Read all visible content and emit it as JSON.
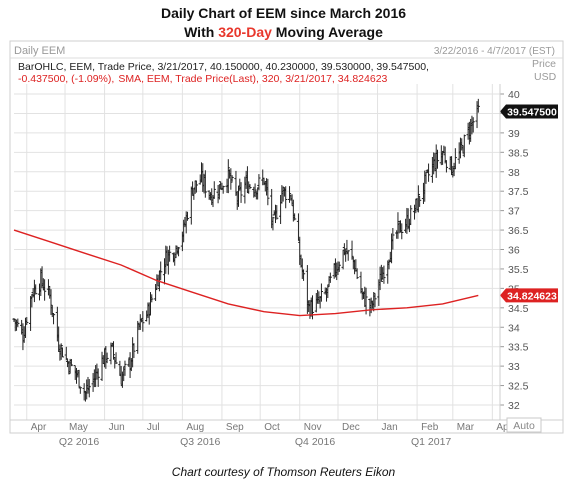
{
  "header": {
    "title_line1": "Daily Chart of EEM since March 2016",
    "title_line2_pre": "With ",
    "title_line2_highlight": "320-Day",
    "title_line2_post": " Moving Average"
  },
  "panel": {
    "name": "Daily EEM",
    "date_range": "3/22/2016 - 4/7/2017 (EST)",
    "info_line1": "BarOHLC, EEM, Trade Price, 3/21/2017, 40.150000, 40.230000, 39.530000, 39.547500,",
    "info_line2_change": "-0.437500, (-1.09%),",
    "info_line2_sma": "SMA, EEM, Trade Price(Last),  320,  3/21/2017, 34.824623",
    "price_label": "Price",
    "currency_label": "USD",
    "auto_label": "Auto",
    "last_price_tag": "39.547500",
    "sma_tag": "34.824623"
  },
  "caption": "Chart courtesy of Thomson Reuters Eikon",
  "colors": {
    "price": "#222222",
    "sma": "#dd2222",
    "last_tag_bg": "#111111",
    "sma_tag_bg": "#dd2222",
    "grid": "#e2e2e2"
  },
  "chart_data": {
    "type": "line",
    "title": "Daily Chart of EEM since March 2016",
    "subtitle": "With 320-Day Moving Average",
    "ylabel": "Price USD",
    "ylim": [
      31.6,
      40.5
    ],
    "yticks": [
      "32",
      "32.5",
      "33",
      "33.5",
      "34",
      "34.5",
      "35",
      "35.5",
      "36",
      "36.5",
      "37",
      "37.5",
      "38",
      "38.5",
      "39",
      "39.5",
      "40"
    ],
    "grid": true,
    "month_labels": [
      {
        "label": "Apr",
        "x": "2016-04-01"
      },
      {
        "label": "May",
        "x": "2016-05-01"
      },
      {
        "label": "Jun",
        "x": "2016-06-01"
      },
      {
        "label": "Jul",
        "x": "2016-07-01"
      },
      {
        "label": "Aug",
        "x": "2016-08-01"
      },
      {
        "label": "Sep",
        "x": "2016-09-01"
      },
      {
        "label": "Oct",
        "x": "2016-10-01"
      },
      {
        "label": "Nov",
        "x": "2016-11-01"
      },
      {
        "label": "Dec",
        "x": "2016-12-01"
      },
      {
        "label": "Jan",
        "x": "2017-01-01"
      },
      {
        "label": "Feb",
        "x": "2017-02-01"
      },
      {
        "label": "Mar",
        "x": "2017-03-01"
      },
      {
        "label": "Apr",
        "x": "2017-04-01"
      }
    ],
    "quarter_labels": [
      {
        "label": "Q2 2016",
        "x": "2016-05-12"
      },
      {
        "label": "Q3 2016",
        "x": "2016-08-15"
      },
      {
        "label": "Q4 2016",
        "x": "2016-11-13"
      },
      {
        "label": "Q1 2017",
        "x": "2017-02-12"
      }
    ],
    "series": [
      {
        "name": "EEM",
        "x": [
          "2016-03-22",
          "2016-03-29",
          "2016-04-05",
          "2016-04-12",
          "2016-04-19",
          "2016-04-26",
          "2016-05-03",
          "2016-05-10",
          "2016-05-17",
          "2016-05-24",
          "2016-05-31",
          "2016-06-07",
          "2016-06-14",
          "2016-06-21",
          "2016-06-28",
          "2016-07-05",
          "2016-07-12",
          "2016-07-19",
          "2016-07-26",
          "2016-08-02",
          "2016-08-09",
          "2016-08-16",
          "2016-08-23",
          "2016-08-30",
          "2016-09-06",
          "2016-09-13",
          "2016-09-20",
          "2016-09-27",
          "2016-10-04",
          "2016-10-11",
          "2016-10-18",
          "2016-10-25",
          "2016-11-01",
          "2016-11-08",
          "2016-11-15",
          "2016-11-22",
          "2016-11-29",
          "2016-12-06",
          "2016-12-13",
          "2016-12-20",
          "2016-12-27",
          "2017-01-03",
          "2017-01-10",
          "2017-01-17",
          "2017-01-24",
          "2017-01-31",
          "2017-02-07",
          "2017-02-14",
          "2017-02-21",
          "2017-02-28",
          "2017-03-07",
          "2017-03-14",
          "2017-03-21"
        ],
        "values": [
          34.2,
          33.8,
          34.9,
          35.2,
          34.8,
          33.6,
          33.1,
          32.8,
          32.3,
          32.7,
          33.2,
          33.4,
          32.7,
          33.1,
          34.0,
          34.4,
          35.2,
          35.8,
          36.0,
          36.5,
          37.6,
          37.8,
          37.4,
          37.6,
          37.9,
          37.3,
          37.7,
          37.6,
          37.8,
          36.6,
          37.5,
          37.4,
          35.8,
          34.5,
          34.6,
          34.9,
          35.5,
          36.0,
          35.7,
          34.8,
          34.5,
          35.2,
          35.9,
          36.5,
          36.7,
          37.1,
          37.7,
          38.2,
          38.5,
          38.1,
          38.5,
          39.1,
          39.55
        ]
      },
      {
        "name": "SMA (320)",
        "x": [
          "2016-03-22",
          "2016-04-19",
          "2016-05-17",
          "2016-06-14",
          "2016-07-12",
          "2016-08-09",
          "2016-09-06",
          "2016-10-04",
          "2016-11-01",
          "2016-11-29",
          "2016-12-27",
          "2017-01-24",
          "2017-02-21",
          "2017-03-21"
        ],
        "values": [
          36.5,
          36.2,
          35.9,
          35.6,
          35.2,
          34.9,
          34.6,
          34.4,
          34.3,
          34.35,
          34.45,
          34.5,
          34.6,
          34.82
        ]
      }
    ]
  }
}
